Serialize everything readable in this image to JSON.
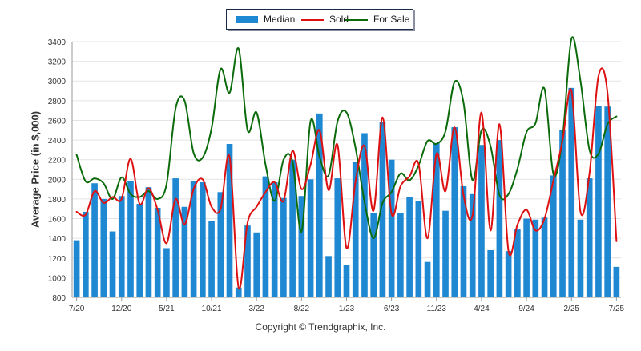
{
  "chart_data": {
    "type": "bar",
    "title": "",
    "xlabel": "",
    "ylabel": "Average Price (in $,000)",
    "ylim": [
      800,
      3400
    ],
    "yticks": [
      800,
      1000,
      1200,
      1400,
      1600,
      1800,
      2000,
      2200,
      2400,
      2600,
      2800,
      3000,
      3200,
      3400
    ],
    "grid": true,
    "legend_position": "top-center",
    "xtick_labels": [
      {
        "index": 0,
        "label": "7/20"
      },
      {
        "index": 5,
        "label": "12/20"
      },
      {
        "index": 10,
        "label": "5/21"
      },
      {
        "index": 15,
        "label": "10/21"
      },
      {
        "index": 20,
        "label": "3/22"
      },
      {
        "index": 25,
        "label": "8/22"
      },
      {
        "index": 30,
        "label": "1/23"
      },
      {
        "index": 35,
        "label": "6/23"
      },
      {
        "index": 40,
        "label": "11/23"
      },
      {
        "index": 45,
        "label": "4/24"
      },
      {
        "index": 50,
        "label": "9/24"
      },
      {
        "index": 55,
        "label": "2/25"
      },
      {
        "index": 60,
        "label": "7/25"
      }
    ],
    "series": [
      {
        "name": "Median",
        "type": "bar",
        "color": "#1f88d2",
        "values": [
          1380,
          1670,
          1960,
          1800,
          1470,
          1830,
          1980,
          1750,
          1920,
          1710,
          1300,
          2010,
          1720,
          1980,
          1970,
          1580,
          1870,
          2360,
          900,
          1530,
          1460,
          2030,
          1970,
          1810,
          2200,
          1830,
          2000,
          2670,
          1220,
          2010,
          1130,
          2180,
          2470,
          1660,
          2580,
          2200,
          1660,
          1820,
          1780,
          1160,
          2370,
          1680,
          2530,
          1930,
          1850,
          2350,
          1280,
          2400,
          1270,
          1490,
          1600,
          1590,
          1610,
          2040,
          2500,
          2930,
          1590,
          2010,
          2750,
          2740,
          1110
        ]
      },
      {
        "name": "Sold",
        "type": "line",
        "color": "#dd1111",
        "values": [
          1670,
          1640,
          1880,
          1760,
          1820,
          1800,
          2210,
          1750,
          1910,
          1690,
          1350,
          1800,
          1540,
          1900,
          2000,
          1720,
          1700,
          2230,
          900,
          1560,
          1720,
          1870,
          1970,
          1780,
          2290,
          1900,
          2150,
          2500,
          1890,
          2350,
          1300,
          1980,
          2340,
          1680,
          2630,
          1650,
          1930,
          2030,
          2160,
          1400,
          2260,
          1880,
          2530,
          1840,
          1630,
          2680,
          1480,
          2560,
          1270,
          1540,
          1690,
          1480,
          1600,
          1990,
          2390,
          2900,
          1670,
          2060,
          3050,
          2880,
          1370
        ]
      },
      {
        "name": "For Sale",
        "type": "line",
        "color": "#0b6b0b",
        "values": [
          2250,
          1980,
          2010,
          1960,
          1800,
          2020,
          1850,
          1820,
          1880,
          1800,
          1950,
          2720,
          2800,
          2270,
          2220,
          2520,
          3120,
          2880,
          3330,
          2500,
          2680,
          2150,
          1780,
          2200,
          2180,
          1470,
          2590,
          2230,
          2040,
          2590,
          2680,
          2320,
          1770,
          1400,
          1760,
          1870,
          2060,
          1990,
          2140,
          2390,
          2360,
          2490,
          2990,
          2780,
          1990,
          2500,
          2340,
          1840,
          1850,
          2110,
          2480,
          2570,
          2920,
          2050,
          2420,
          3430,
          3000,
          2300,
          2260,
          2560,
          2640
        ]
      }
    ]
  },
  "legend": {
    "items": [
      {
        "label": "Median",
        "color": "#1f88d2"
      },
      {
        "label": "Sold",
        "color": "#dd1111"
      },
      {
        "label": "For Sale",
        "color": "#0b6b0b"
      }
    ]
  },
  "footer": {
    "copyright": "Copyright © Trendgraphix, Inc."
  }
}
